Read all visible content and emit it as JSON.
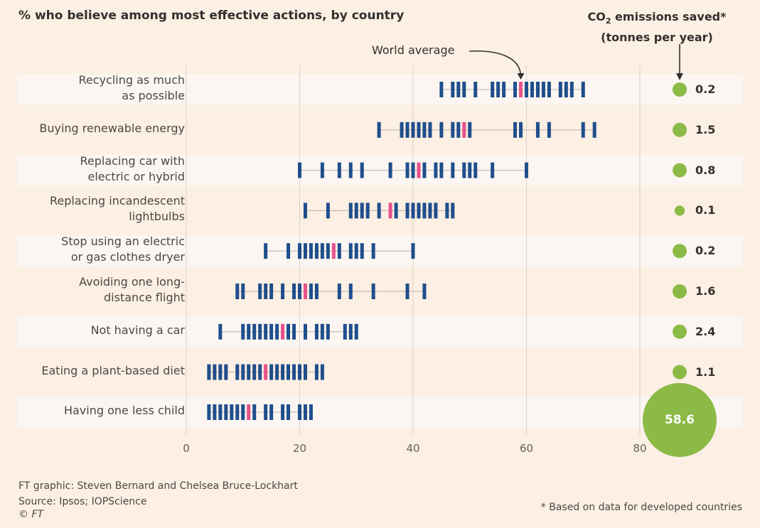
{
  "title": "% who believe among most effective actions, by country",
  "co2_header": {
    "line1_pre": "CO",
    "line1_sub": "2",
    "line1_post": " emissions saved*",
    "line2": "(tonnes per year)"
  },
  "annotation": {
    "world_average": "World average"
  },
  "credits": {
    "graphic": "FT graphic: Steven Bernard and Chelsea Bruce-Lockhart",
    "source": "Source: Ipsos; IOPScience",
    "copyright": "© FT",
    "footnote": "* Based on data for developed countries"
  },
  "colors": {
    "country": "#1f4e8c",
    "average": "#e8528a",
    "emissions": "#8cba46",
    "band": "#fbf6f1",
    "background": "#fcefe3",
    "range_line": "#b9b1aa"
  },
  "chart_data": {
    "type": "scatter",
    "xlim": [
      0,
      80
    ],
    "xticks": [
      "0",
      "20",
      "40",
      "60",
      "80"
    ],
    "grid": true,
    "rows": [
      {
        "label": [
          "Recycling as much",
          "as possible"
        ],
        "values": [
          45,
          47,
          48,
          49,
          51,
          54,
          55,
          56,
          58,
          60,
          61,
          62,
          63,
          64,
          66,
          67,
          68,
          70
        ],
        "average": 59,
        "co2": 0.2,
        "co2_label": "0.2"
      },
      {
        "label": [
          "Buying renewable energy"
        ],
        "values": [
          34,
          38,
          39,
          40,
          41,
          42,
          43,
          45,
          47,
          48,
          50,
          58,
          59,
          62,
          64,
          70,
          72
        ],
        "average": 49,
        "co2": 1.5,
        "co2_label": "1.5"
      },
      {
        "label": [
          "Replacing car with",
          "electric or hybrid"
        ],
        "values": [
          20,
          24,
          27,
          29,
          31,
          36,
          39,
          40,
          42,
          44,
          45,
          47,
          49,
          50,
          51,
          54,
          60
        ],
        "average": 41,
        "co2": 0.8,
        "co2_label": "0.8"
      },
      {
        "label": [
          "Replacing incandescent",
          "lightbulbs"
        ],
        "values": [
          21,
          25,
          29,
          30,
          31,
          32,
          34,
          37,
          39,
          40,
          41,
          42,
          43,
          44,
          46,
          47
        ],
        "average": 36,
        "co2": 0.1,
        "co2_label": "0.1"
      },
      {
        "label": [
          "Stop using an electric",
          "or gas clothes dryer"
        ],
        "values": [
          14,
          18,
          20,
          21,
          22,
          23,
          24,
          25,
          27,
          29,
          30,
          31,
          33,
          40
        ],
        "average": 26,
        "co2": 0.2,
        "co2_label": "0.2"
      },
      {
        "label": [
          "Avoiding one long-",
          "distance flight"
        ],
        "values": [
          9,
          10,
          13,
          14,
          15,
          17,
          19,
          20,
          22,
          23,
          27,
          29,
          33,
          39,
          42
        ],
        "average": 21,
        "co2": 1.6,
        "co2_label": "1.6"
      },
      {
        "label": [
          "Not having a car"
        ],
        "values": [
          6,
          10,
          11,
          12,
          13,
          14,
          15,
          16,
          18,
          19,
          21,
          23,
          24,
          25,
          28,
          29,
          30
        ],
        "average": 17,
        "co2": 2.4,
        "co2_label": "2.4"
      },
      {
        "label": [
          "Eating a plant-based diet"
        ],
        "values": [
          4,
          5,
          6,
          7,
          9,
          10,
          11,
          12,
          13,
          15,
          16,
          17,
          18,
          19,
          20,
          21,
          23,
          24
        ],
        "average": 14,
        "co2": 1.1,
        "co2_label": "1.1"
      },
      {
        "label": [
          "Having one less child"
        ],
        "values": [
          4,
          5,
          6,
          7,
          8,
          9,
          10,
          12,
          14,
          15,
          17,
          18,
          20,
          21,
          22
        ],
        "average": 11,
        "co2": 58.6,
        "co2_label": "58.6"
      }
    ]
  }
}
